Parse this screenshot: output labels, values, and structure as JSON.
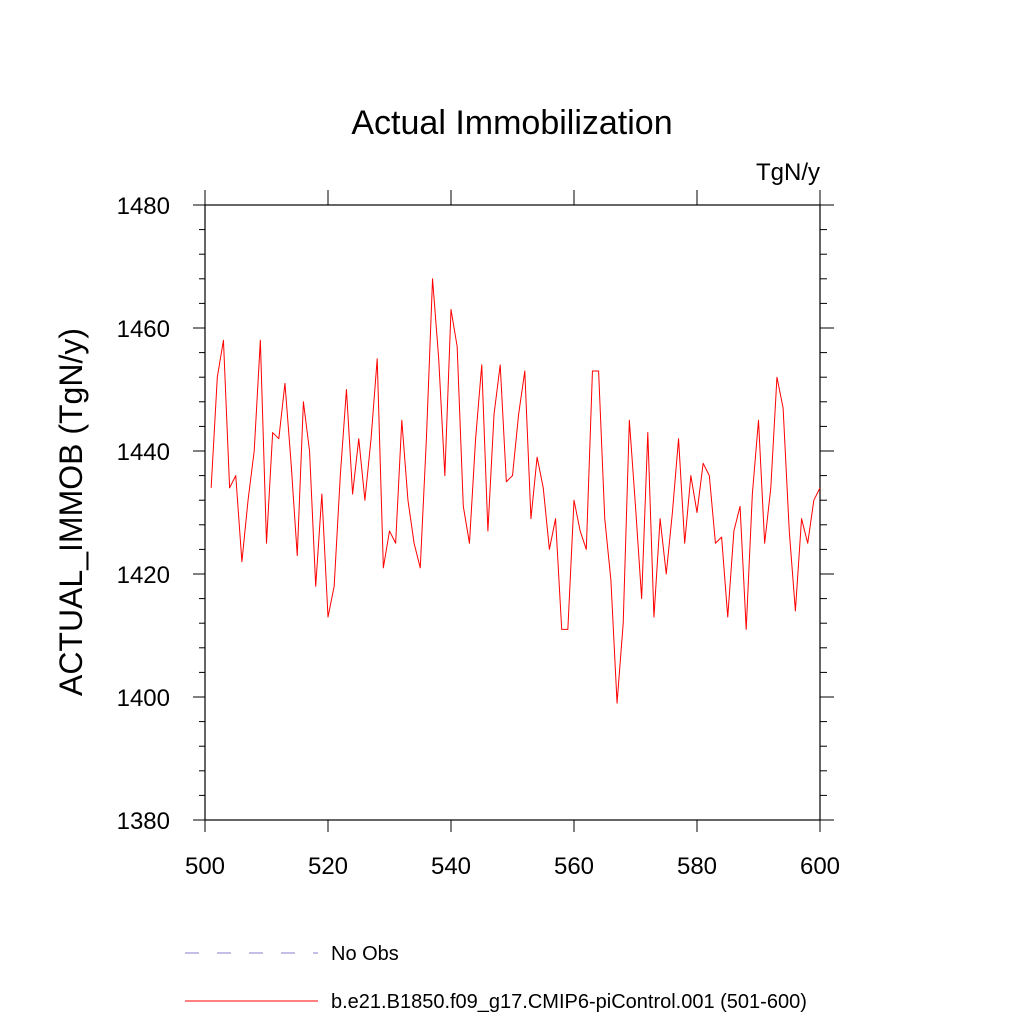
{
  "chart_data": {
    "type": "line",
    "title": "Actual Immobilization",
    "units_label": "TgN/y",
    "xlabel": "",
    "ylabel": "ACTUAL_IMMOB  (TgN/y)",
    "xlim": [
      500,
      600
    ],
    "ylim": [
      1380,
      1480
    ],
    "x_ticks": [
      500,
      520,
      540,
      560,
      580,
      600
    ],
    "x_tick_labels": [
      "500",
      "520",
      "540",
      "560",
      "580",
      "600"
    ],
    "y_ticks": [
      1380,
      1400,
      1420,
      1440,
      1460,
      1480
    ],
    "y_tick_labels": [
      "1380",
      "1400",
      "1420",
      "1440",
      "1460",
      "1480"
    ],
    "series": [
      {
        "name": "b.e21.B1850.f09_g17.CMIP6-piControl.001 (501-600)",
        "color": "#ff0000",
        "style": "solid",
        "x": [
          501,
          502,
          503,
          504,
          505,
          506,
          507,
          508,
          509,
          510,
          511,
          512,
          513,
          514,
          515,
          516,
          517,
          518,
          519,
          520,
          521,
          522,
          523,
          524,
          525,
          526,
          527,
          528,
          529,
          530,
          531,
          532,
          533,
          534,
          535,
          536,
          537,
          538,
          539,
          540,
          541,
          542,
          543,
          544,
          545,
          546,
          547,
          548,
          549,
          550,
          551,
          552,
          553,
          554,
          555,
          556,
          557,
          558,
          559,
          560,
          561,
          562,
          563,
          564,
          565,
          566,
          567,
          568,
          569,
          570,
          571,
          572,
          573,
          574,
          575,
          576,
          577,
          578,
          579,
          580,
          581,
          582,
          583,
          584,
          585,
          586,
          587,
          588,
          589,
          590,
          591,
          592,
          593,
          594,
          595,
          596,
          597,
          598,
          599,
          600
        ],
        "values": [
          1434,
          1452,
          1458,
          1434,
          1436,
          1422,
          1432,
          1440,
          1458,
          1425,
          1443,
          1442,
          1451,
          1438,
          1423,
          1448,
          1440,
          1418,
          1433,
          1413,
          1418,
          1436,
          1450,
          1433,
          1442,
          1432,
          1442,
          1455,
          1421,
          1427,
          1425,
          1445,
          1432,
          1425,
          1421,
          1442,
          1468,
          1455,
          1436,
          1463,
          1457,
          1431,
          1425,
          1442,
          1454,
          1427,
          1446,
          1454,
          1435,
          1436,
          1446,
          1453,
          1429,
          1439,
          1434,
          1424,
          1429,
          1411,
          1411,
          1432,
          1427,
          1424,
          1453,
          1453,
          1429,
          1419,
          1399,
          1412,
          1445,
          1431,
          1416,
          1443,
          1413,
          1429,
          1420,
          1430,
          1442,
          1425,
          1436,
          1430,
          1438,
          1436,
          1425,
          1426,
          1413,
          1427,
          1431,
          1411,
          1433,
          1445,
          1425,
          1434,
          1452,
          1447,
          1427,
          1414,
          1429,
          1425,
          1432,
          1434
        ]
      }
    ],
    "legend": [
      {
        "label": "No Obs",
        "color": "#8a7fc8",
        "style": "dashed"
      },
      {
        "label": "b.e21.B1850.f09_g17.CMIP6-piControl.001 (501-600)",
        "color": "#ff0000",
        "style": "solid"
      }
    ]
  }
}
